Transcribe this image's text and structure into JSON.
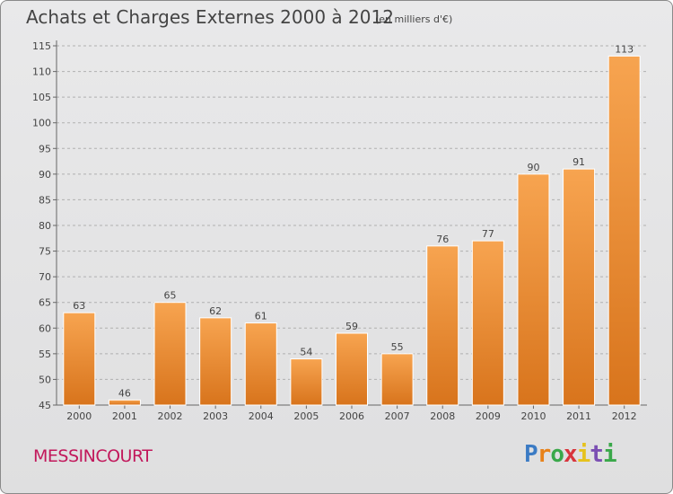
{
  "header": {
    "title": "Achats et Charges Externes 2000 à 2012",
    "subtitle": "(en milliers d'€)"
  },
  "footer": {
    "commune": "MESSINCOURT",
    "logo_letters": [
      "P",
      "r",
      "o",
      "x",
      "i",
      "t",
      "i"
    ]
  },
  "colors": {
    "bar_top": "#f7a450",
    "bar_bottom": "#d8741c",
    "bar_edge": "#ffffff",
    "grid": "#b0b0b0",
    "text": "#444444",
    "commune": "#c2185b"
  },
  "chart_data": {
    "type": "bar",
    "title": "Achats et Charges Externes 2000 à 2012",
    "subtitle": "(en milliers d'€)",
    "xlabel": "",
    "ylabel": "",
    "categories": [
      "2000",
      "2001",
      "2002",
      "2003",
      "2004",
      "2005",
      "2006",
      "2007",
      "2008",
      "2009",
      "2010",
      "2011",
      "2012"
    ],
    "values": [
      63,
      46,
      65,
      62,
      61,
      54,
      59,
      55,
      76,
      77,
      90,
      91,
      113
    ],
    "ylim": [
      45,
      115
    ],
    "yticks": [
      45,
      50,
      55,
      60,
      65,
      70,
      75,
      80,
      85,
      90,
      95,
      100,
      105,
      110,
      115
    ],
    "grid": true,
    "grid_style": "dashed",
    "data_labels": true
  }
}
